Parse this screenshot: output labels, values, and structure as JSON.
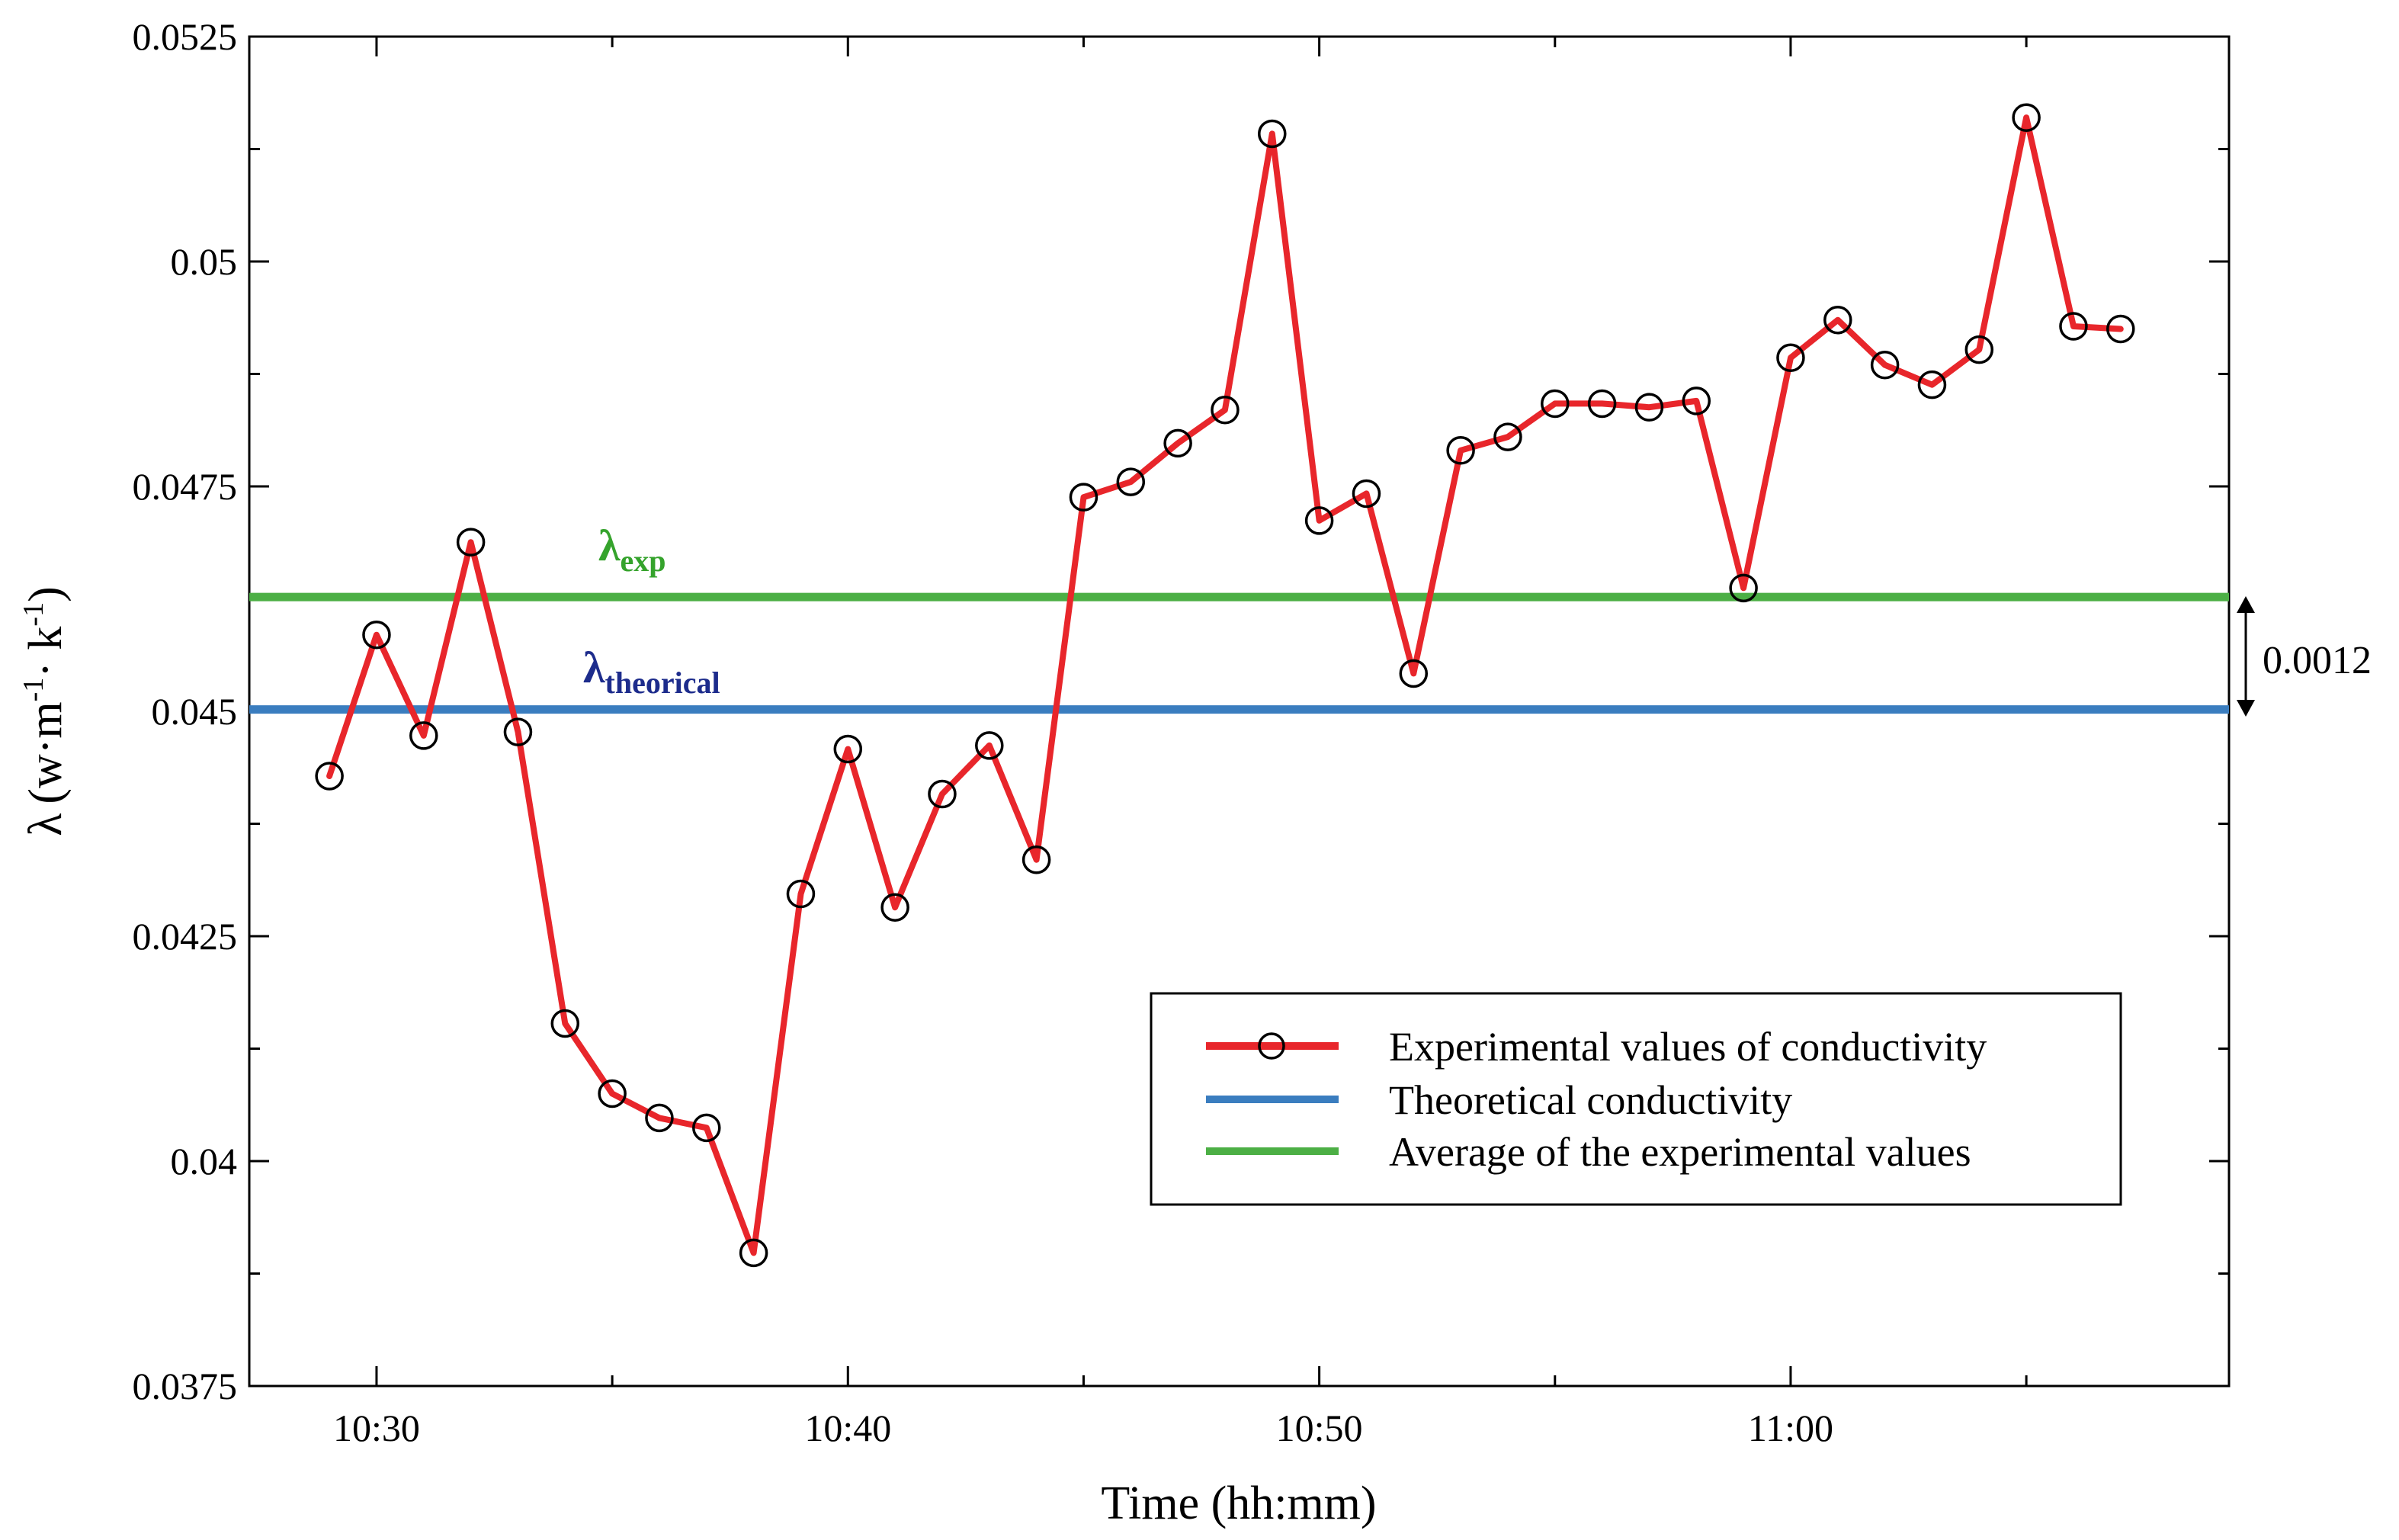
{
  "chart_data": {
    "type": "line",
    "xlabel": "Time (hh:mm)",
    "ylabel_symbol": "λ",
    "ylabel_parts": [
      "(w·m",
      "-1",
      "· k",
      "-1",
      ")"
    ],
    "xlim": [
      27.3,
      69.3
    ],
    "ylim": [
      0.0375,
      0.0525
    ],
    "x_ticks": [
      30,
      40,
      50,
      60
    ],
    "x_tick_labels": [
      "10:30",
      "10:40",
      "10:50",
      "11:00"
    ],
    "y_ticks": [
      0.0375,
      0.04,
      0.0425,
      0.045,
      0.0475,
      0.05,
      0.0525
    ],
    "y_tick_labels": [
      "0.0375",
      "0.04",
      "0.0425",
      "0.045",
      "0.0475",
      "0.05",
      "0.0525"
    ],
    "series": [
      {
        "name": "Experimental values of conductivity",
        "color": "#e8262b",
        "marker": "circle",
        "x": [
          29,
          30,
          31,
          32,
          33,
          34,
          35,
          36,
          37,
          38,
          39,
          40,
          41,
          42,
          43,
          44,
          45,
          46,
          47,
          48,
          49,
          50,
          51,
          52,
          53,
          54,
          55,
          56,
          57,
          58,
          59,
          60,
          61,
          62,
          63,
          64,
          65,
          66,
          67
        ],
        "values": [
          0.04428,
          0.04585,
          0.04473,
          0.04688,
          0.04477,
          0.04153,
          0.04075,
          0.04048,
          0.04037,
          0.03898,
          0.04297,
          0.04458,
          0.04282,
          0.04408,
          0.04462,
          0.04335,
          0.04738,
          0.04755,
          0.04798,
          0.04835,
          0.05142,
          0.04712,
          0.04742,
          0.04542,
          0.0479,
          0.04805,
          0.04842,
          0.04842,
          0.04838,
          0.04845,
          0.04637,
          0.04893,
          0.04935,
          0.04885,
          0.04863,
          0.04902,
          0.0516,
          0.04928,
          0.04925
        ]
      },
      {
        "name": "Theoretical conductivity",
        "color": "#3a7dbf",
        "constant": 0.04502
      },
      {
        "name": "Average of the experimental values",
        "color": "#4caf45",
        "constant": 0.04627
      }
    ],
    "annotations": {
      "exp": {
        "main": "λ",
        "sub": "exp",
        "color": "#35a32c"
      },
      "theo": {
        "main": "λ",
        "sub": "theorical",
        "color": "#1d2c8c"
      },
      "difference": "0.0012"
    },
    "legend_position": "lower-right"
  }
}
